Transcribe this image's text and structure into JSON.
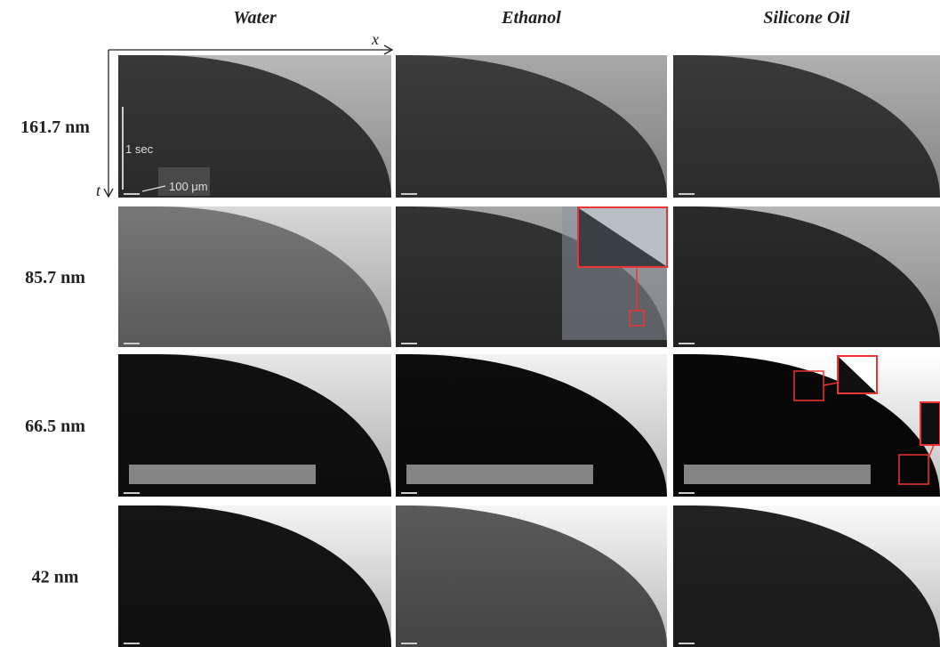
{
  "figure": {
    "columns": [
      "Water",
      "Ethanol",
      "Silicone Oil"
    ],
    "rows": [
      "161.7 nm",
      "85.7 nm",
      "66.5 nm",
      "42 nm"
    ],
    "axes": {
      "x": "x",
      "t": "t"
    },
    "scale_bar": {
      "time": "1 sec",
      "length": "100 μm"
    }
  }
}
